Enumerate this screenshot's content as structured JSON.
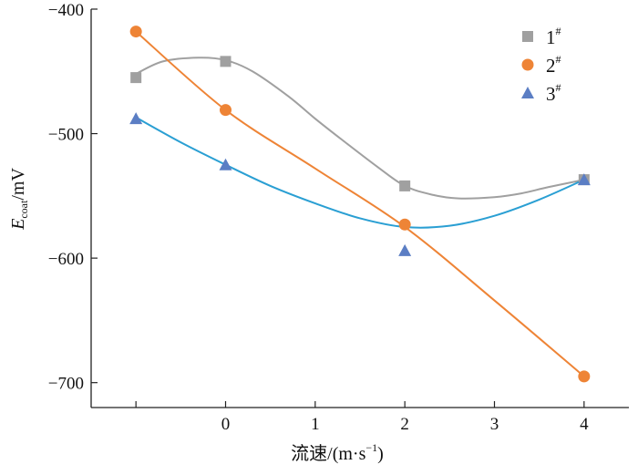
{
  "chart_data": {
    "type": "scatter",
    "x_ticks": [
      {
        "value": 0,
        "label": "0"
      },
      {
        "value": 1,
        "label": "1"
      },
      {
        "value": 2,
        "label": "2"
      },
      {
        "value": 3,
        "label": "3"
      },
      {
        "value": 4,
        "label": "4"
      }
    ],
    "y_ticks": [
      {
        "value": -400,
        "label": "−400"
      },
      {
        "value": -500,
        "label": "−500"
      },
      {
        "value": -600,
        "label": "−600"
      },
      {
        "value": -700,
        "label": "−700"
      }
    ],
    "xlim": [
      -1.5,
      4.5
    ],
    "ylim": [
      -720,
      -400
    ],
    "xlabel": {
      "text": "流速/(m·s",
      "sup": "−1",
      "close": ")"
    },
    "ylabel": {
      "main": "E",
      "sub": "coat",
      "unit": "/mV"
    },
    "legend_position": "top-right",
    "series": [
      {
        "name": "1",
        "name_sup": "#",
        "marker": "square",
        "color": "#a0a0a0",
        "x": [
          -1,
          0,
          2,
          4
        ],
        "y": [
          -455,
          -442,
          -542,
          -537
        ],
        "fit_x": [
          -1,
          -0.7,
          -0.3,
          0,
          0.3,
          0.7,
          1,
          1.3,
          1.7,
          2,
          2.3,
          2.6,
          3,
          3.3,
          3.6,
          4
        ],
        "fit_y": [
          -452,
          -442,
          -439,
          -441,
          -450,
          -470,
          -488,
          -505,
          -527,
          -542,
          -549,
          -552,
          -551,
          -548,
          -543,
          -537
        ]
      },
      {
        "name": "2",
        "name_sup": "#",
        "marker": "circle",
        "color": "#ee8436",
        "x": [
          -1,
          0,
          2,
          4
        ],
        "y": [
          -418,
          -481,
          -573,
          -695
        ],
        "fit_x": [
          -1,
          0,
          1,
          2,
          3,
          4
        ],
        "fit_y": [
          -418,
          -481,
          -528,
          -575,
          -634,
          -695
        ]
      },
      {
        "name": "3",
        "name_sup": "#",
        "marker": "triangle",
        "color": "#5b7ec4",
        "line_color": "#2a9fd3",
        "x": [
          -1,
          0,
          2,
          4
        ],
        "y": [
          -488,
          -525,
          -594,
          -537
        ],
        "fit_x": [
          -1,
          -0.5,
          0,
          0.5,
          1,
          1.5,
          2,
          2.5,
          3,
          3.5,
          4
        ],
        "fit_y": [
          -487,
          -507,
          -525,
          -542,
          -556,
          -568,
          -575,
          -574,
          -566,
          -553,
          -537
        ]
      }
    ]
  }
}
